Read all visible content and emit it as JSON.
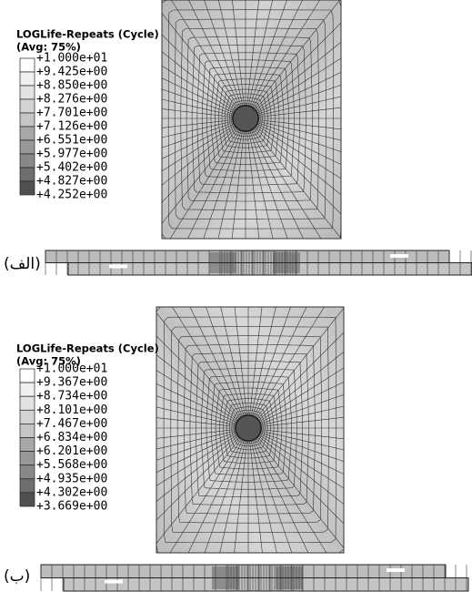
{
  "panels": [
    {
      "label": "(الف)",
      "legend": {
        "title": "LOGLife-Repeats (Cycle)",
        "avg": "(Avg: 75%)",
        "labels": [
          "+1.000e+01",
          "+9.425e+00",
          "+8.850e+00",
          "+8.276e+00",
          "+7.701e+00",
          "+7.126e+00",
          "+6.551e+00",
          "+5.977e+00",
          "+5.402e+00",
          "+4.827e+00",
          "+4.252e+00"
        ]
      }
    },
    {
      "label": "(ب)",
      "legend": {
        "title": "LOGLife-Repeats (Cycle)",
        "avg": "(Avg: 75%)",
        "labels": [
          "+1.000e+01",
          "+9.367e+00",
          "+8.734e+00",
          "+8.101e+00",
          "+7.467e+00",
          "+6.834e+00",
          "+6.201e+00",
          "+5.568e+00",
          "+4.935e+00",
          "+4.302e+00",
          "+3.669e+00"
        ]
      }
    }
  ]
}
